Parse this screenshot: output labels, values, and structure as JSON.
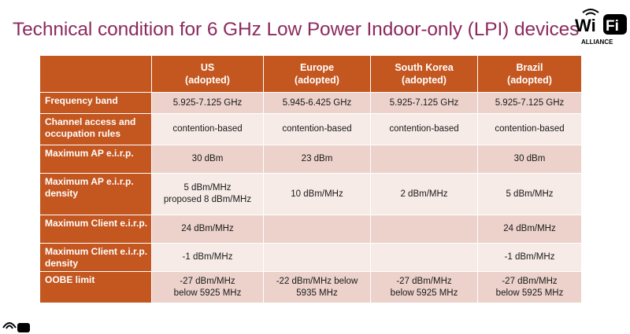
{
  "title": "Technical condition for 6 GHz Low Power Indoor-only (LPI) devices",
  "logo": {
    "text": "Wi Fi",
    "wi": "Wi",
    "fi": "Fi",
    "sub": "ALLIANCE",
    "icon": "wifi-alliance-logo"
  },
  "table": {
    "headers": [
      {
        "line1": "",
        "line2": ""
      },
      {
        "line1": "US",
        "line2": "(adopted)"
      },
      {
        "line1": "Europe",
        "line2": "(adopted)"
      },
      {
        "line1": "South Korea",
        "line2": "(adopted)"
      },
      {
        "line1": "Brazil",
        "line2": "(adopted)"
      }
    ],
    "rows": [
      {
        "label": "Frequency band",
        "cells": [
          [
            "5.925-7.125 GHz",
            ""
          ],
          [
            "5.945-6.425 GHz",
            ""
          ],
          [
            "5.925-7.125 GHz",
            ""
          ],
          [
            "5.925-7.125 GHz",
            ""
          ]
        ]
      },
      {
        "label": "Channel access and occupation rules",
        "cells": [
          [
            "contention-based",
            ""
          ],
          [
            "contention-based",
            ""
          ],
          [
            "contention-based",
            ""
          ],
          [
            "contention-based",
            ""
          ]
        ]
      },
      {
        "label": "Maximum AP e.i.r.p.",
        "cells": [
          [
            "30 dBm",
            ""
          ],
          [
            "23 dBm",
            ""
          ],
          [
            "",
            ""
          ],
          [
            "30 dBm",
            ""
          ]
        ]
      },
      {
        "label": "Maximum AP e.i.r.p. density",
        "cells": [
          [
            "5 dBm/MHz",
            "proposed 8 dBm/MHz"
          ],
          [
            "10 dBm/MHz",
            ""
          ],
          [
            "2 dBm/MHz",
            ""
          ],
          [
            "5 dBm/MHz",
            ""
          ]
        ]
      },
      {
        "label": "Maximum Client e.i.r.p.",
        "cells": [
          [
            "24 dBm/MHz",
            ""
          ],
          [
            "",
            ""
          ],
          [
            "",
            ""
          ],
          [
            "24 dBm/MHz",
            ""
          ]
        ]
      },
      {
        "label": "Maximum Client e.i.r.p. density",
        "cells": [
          [
            "-1 dBm/MHz",
            ""
          ],
          [
            "",
            ""
          ],
          [
            "",
            ""
          ],
          [
            "-1 dBm/MHz",
            ""
          ]
        ]
      },
      {
        "label": "OOBE limit",
        "cells": [
          [
            "-27 dBm/MHz",
            "below 5925 MHz"
          ],
          [
            "-22 dBm/MHz below",
            "5935 MHz"
          ],
          [
            "-27 dBm/MHz",
            "below 5925 MHz"
          ],
          [
            "-27 dBm/MHz",
            "below 5925 MHz"
          ]
        ]
      }
    ]
  },
  "colors": {
    "title": "#8c2a5f",
    "header": "#c4561f",
    "row_odd": "#ecd2cb",
    "row_even": "#f6ebe7"
  }
}
